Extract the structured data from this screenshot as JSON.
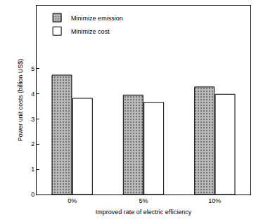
{
  "chart_data": {
    "type": "bar",
    "x_label": "Improved rate of electric efficiency",
    "y_label": "Power unit costs (billion US$)",
    "categories": [
      "0%",
      "5%",
      "10%"
    ],
    "series": [
      {
        "name": "Minimize emission",
        "color": "#bdbdbd",
        "values": [
          4.74,
          3.95,
          4.27
        ]
      },
      {
        "name": "Minimize cost",
        "color": "#ffffff",
        "values": [
          3.82,
          3.66,
          3.98
        ]
      }
    ],
    "ylim": [
      0,
      7.5
    ],
    "yticks": [
      0,
      1,
      2,
      3,
      4,
      5
    ],
    "grid": false,
    "legend": "upper left"
  }
}
